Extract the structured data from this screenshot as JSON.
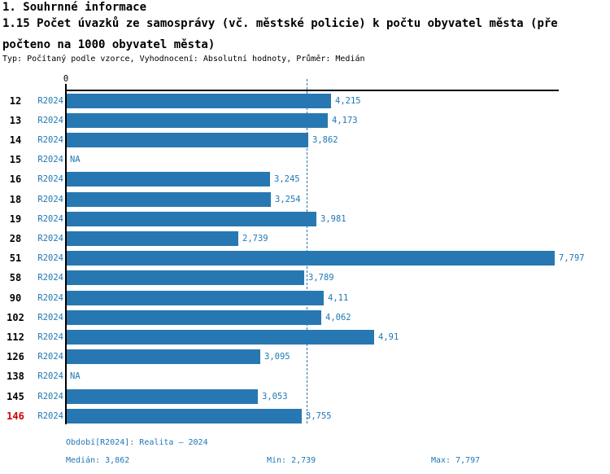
{
  "header": {
    "section_title": "1. Souhrnné informace",
    "indicator_title_lines": [
      "1.15 Počet úvazků ze samosprávy (vč. městské policie) k počtu obyvatel města (pře",
      "počteno na 1000 obyvatel města)"
    ],
    "meta_line": "Typ: Počítaný podle vzorce, Vyhodnocení: Absolutní hodnoty, Průměr: Medián"
  },
  "chart_data": {
    "type": "bar",
    "orientation": "horizontal",
    "x_ticks": [
      "0"
    ],
    "xlim": [
      0,
      7.9
    ],
    "grid": false,
    "legend": false,
    "period_label": "R2024",
    "categories": [
      "12",
      "13",
      "14",
      "15",
      "16",
      "18",
      "19",
      "28",
      "51",
      "58",
      "90",
      "102",
      "112",
      "126",
      "138",
      "145",
      "146"
    ],
    "values": [
      4.215,
      4.173,
      3.862,
      null,
      3.245,
      3.254,
      3.981,
      2.739,
      7.797,
      3.789,
      4.11,
      4.062,
      4.91,
      3.095,
      null,
      3.053,
      3.755
    ],
    "value_labels": [
      "4,215",
      "4,173",
      "3,862",
      "NA",
      "3,245",
      "3,254",
      "3,981",
      "2,739",
      "7,797",
      "3,789",
      "4,11",
      "4,062",
      "4,91",
      "3,095",
      "NA",
      "3,053",
      "3,755"
    ],
    "highlighted_category": "146",
    "median_value": 3.862,
    "bar_color": "#2778b2",
    "text_color": "#1f77b4",
    "highlight_color": "#d10000"
  },
  "footer": {
    "period_info": "Období[R2024]: Realita – 2024",
    "median_label": "Medián: 3,862",
    "min_label": "Min: 2,739",
    "max_label": "Max: 7,797"
  }
}
